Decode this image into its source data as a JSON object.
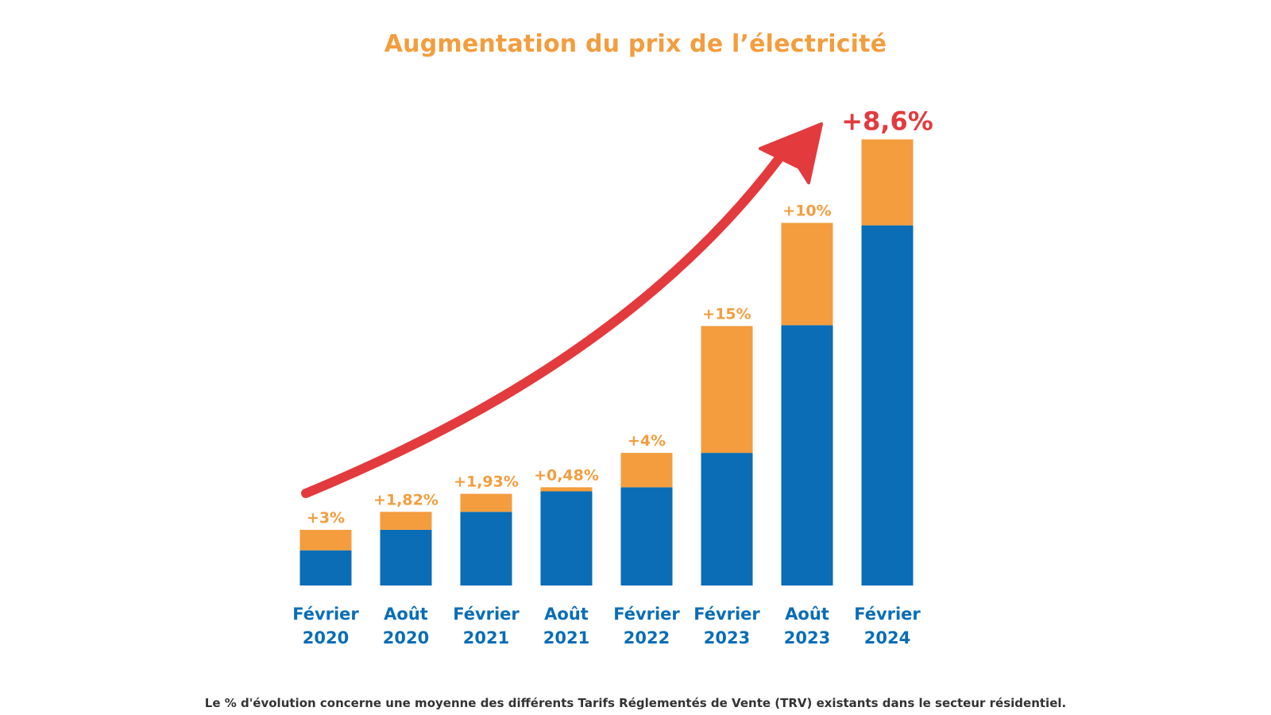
{
  "chart_data": {
    "type": "bar",
    "title": "Augmentation du prix de l’électricité",
    "footnote": "Le % d'évolution concerne une moyenne des différents Tarifs Réglementés de Vente (TRV) existants dans le secteur résidentiel.",
    "categories": [
      [
        "Février",
        "2020"
      ],
      [
        "Août",
        "2020"
      ],
      [
        "Février",
        "2021"
      ],
      [
        "Août",
        "2021"
      ],
      [
        "Février",
        "2022"
      ],
      [
        "Février",
        "2023"
      ],
      [
        "Août",
        "2023"
      ],
      [
        "Février",
        "2024"
      ]
    ],
    "series": [
      {
        "name": "base",
        "values": [
          43,
          68,
          90,
          115,
          120,
          162,
          318,
          440
        ]
      },
      {
        "name": "increase",
        "values": [
          25,
          22,
          22,
          5,
          42,
          155,
          125,
          105
        ]
      }
    ],
    "labels": [
      "+3%",
      "+1,82%",
      "+1,93%",
      "+0,48%",
      "+4%",
      "+15%",
      "+10%",
      "+8,6%"
    ],
    "ylim": [
      0,
      560
    ],
    "xlabel": "",
    "ylabel": "",
    "grid": false,
    "trend_arrow": true,
    "colors": {
      "base": "#0a6db6",
      "increase": "#f39d3e",
      "label": "#f39d3e",
      "highlight_label": "#e33a3e",
      "arrow": "#e33a3e",
      "category": "#0a6db6"
    }
  }
}
